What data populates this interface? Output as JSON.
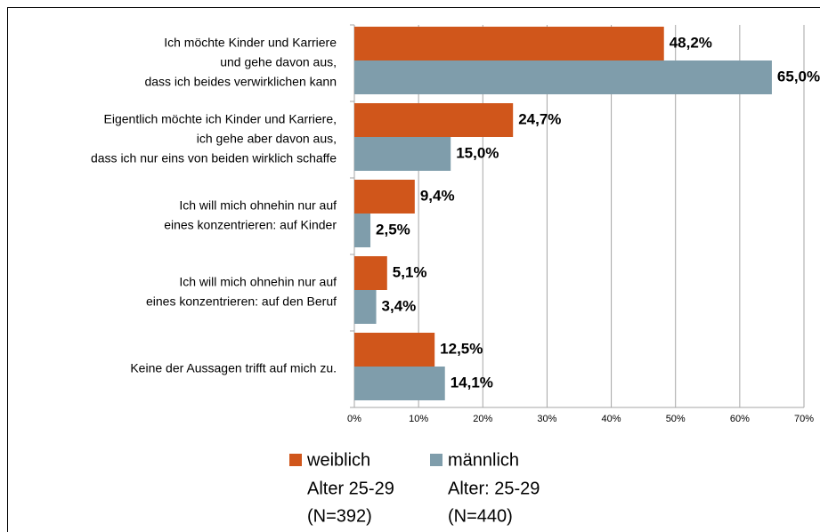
{
  "chart_data": {
    "type": "bar",
    "orientation": "horizontal",
    "categories": [
      [
        "Ich möchte Kinder und Karriere",
        "und gehe davon aus,",
        "dass ich beides verwirklichen kann"
      ],
      [
        "Eigentlich möchte ich Kinder und Karriere,",
        "ich gehe aber davon aus,",
        "dass ich nur eins von beiden wirklich schaffe"
      ],
      [
        "Ich will mich ohnehin nur auf",
        "eines konzentrieren:  auf Kinder"
      ],
      [
        "Ich will mich ohnehin nur auf",
        "eines konzentrieren:  auf den Beruf"
      ],
      [
        "Keine der Aussagen trifft auf mich zu."
      ]
    ],
    "series": [
      {
        "name": "weiblich",
        "note": [
          "Alter 25-29",
          "(N=392)"
        ],
        "color": "#d0561b",
        "values": [
          48.2,
          24.7,
          9.4,
          5.1,
          12.5
        ],
        "value_labels": [
          "48,2%",
          "24,7%",
          "9,4%",
          "5,1%",
          "12,5%"
        ]
      },
      {
        "name": "männlich",
        "note": [
          "Alter: 25-29",
          "(N=440)"
        ],
        "color": "#7f9dab",
        "values": [
          65.0,
          15.0,
          2.5,
          3.4,
          14.1
        ],
        "value_labels": [
          "65,0%",
          "15,0%",
          "2,5%",
          "3,4%",
          "14,1%"
        ]
      }
    ],
    "xlim": [
      0,
      70
    ],
    "xticks": [
      {
        "value": 0,
        "label": "0%"
      },
      {
        "value": 10,
        "label": "10%"
      },
      {
        "value": 20,
        "label": "20%"
      },
      {
        "value": 30,
        "label": "30%"
      },
      {
        "value": 40,
        "label": "40%"
      },
      {
        "value": 50,
        "label": "50%"
      },
      {
        "value": 60,
        "label": "60%"
      },
      {
        "value": 70,
        "label": "70%"
      }
    ],
    "grid": true
  }
}
